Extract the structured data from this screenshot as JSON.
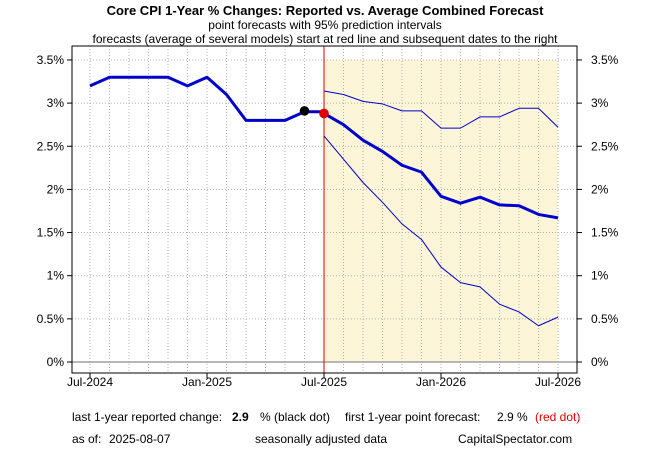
{
  "chart_data": {
    "type": "line",
    "title": "Core CPI 1-Year % Changes: Reported vs. Average Combined Forecast",
    "subtitle1": "point forecasts with 95% prediction intervals",
    "subtitle2": "forecasts (average of several models) start at red line and subsequent dates to the right",
    "ylim": [
      0,
      3.5
    ],
    "yticks": [
      0,
      0.5,
      1,
      1.5,
      2,
      2.5,
      3,
      3.5
    ],
    "ytick_labels": [
      "0%",
      "0.5%",
      "1%",
      "1.5%",
      "2%",
      "2.5%",
      "3%",
      "3.5%"
    ],
    "xticks": [
      "2024-07",
      "2025-01",
      "2025-07",
      "2026-01",
      "2026-07"
    ],
    "xtick_labels": [
      "Jul-2024",
      "Jan-2025",
      "Jul-2025",
      "Jan-2026",
      "Jul-2026"
    ],
    "forecast_start": "2025-07",
    "forecast_region_ymax": 3.5,
    "grid": true,
    "colors": {
      "series": "#0000cc",
      "forecast_line": "#e00000",
      "forecast_region": "#fdf5d8",
      "grid": "#b0b0b0",
      "zero_line": "#a0a0a0",
      "black_dot": "#000000",
      "red_dot": "#e00000"
    },
    "series": [
      {
        "x": [
          "2024-07",
          "2024-08",
          "2024-09",
          "2024-10",
          "2024-11",
          "2024-12",
          "2025-01",
          "2025-02",
          "2025-03",
          "2025-04",
          "2025-05",
          "2025-06",
          "2025-07"
        ],
        "values": [
          3.2,
          3.3,
          3.3,
          3.3,
          3.3,
          3.2,
          3.3,
          3.1,
          2.8,
          2.8,
          2.8,
          2.9,
          2.9
        ],
        "role": "reported"
      },
      {
        "x": [
          "2025-07",
          "2025-08",
          "2025-09",
          "2025-10",
          "2025-11",
          "2025-12",
          "2026-01",
          "2026-02",
          "2026-03",
          "2026-04",
          "2026-05",
          "2026-06",
          "2026-07"
        ],
        "values": [
          2.88,
          2.75,
          2.57,
          2.44,
          2.28,
          2.2,
          1.92,
          1.84,
          1.91,
          1.82,
          1.81,
          1.71,
          1.67
        ],
        "role": "forecast"
      },
      {
        "x": [
          "2025-07",
          "2025-08",
          "2025-09",
          "2025-10",
          "2025-11",
          "2025-12",
          "2026-01",
          "2026-02",
          "2026-03",
          "2026-04",
          "2026-05",
          "2026-06",
          "2026-07"
        ],
        "values": [
          3.14,
          3.1,
          3.02,
          2.99,
          2.91,
          2.91,
          2.71,
          2.71,
          2.84,
          2.84,
          2.94,
          2.94,
          2.72
        ],
        "role": "upper_95"
      },
      {
        "x": [
          "2025-07",
          "2025-08",
          "2025-09",
          "2025-10",
          "2025-11",
          "2025-12",
          "2026-01",
          "2026-02",
          "2026-03",
          "2026-04",
          "2026-05",
          "2026-06",
          "2026-07"
        ],
        "values": [
          2.62,
          2.35,
          2.08,
          1.85,
          1.6,
          1.42,
          1.1,
          0.92,
          0.87,
          0.67,
          0.58,
          0.42,
          0.52
        ],
        "role": "lower_95"
      }
    ],
    "points": [
      {
        "x": "2025-06",
        "y": 2.91,
        "color": "black"
      },
      {
        "x": "2025-07",
        "y": 2.88,
        "color": "red"
      }
    ]
  },
  "footer": {
    "reported_label": "last 1-year reported change:",
    "reported_value": "2.9",
    "reported_suffix": "% (black dot)",
    "forecast_label": "first 1-year point forecast:",
    "forecast_value": "2.9 %",
    "forecast_suffix": "(red dot)",
    "asof_label": "as of:",
    "asof_value": "2025-08-07",
    "adjusted_note": "seasonally adjusted data",
    "source": "CapitalSpectator.com"
  }
}
